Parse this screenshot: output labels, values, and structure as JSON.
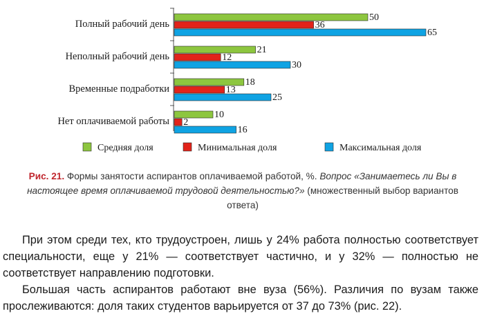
{
  "chart_data": {
    "type": "bar",
    "orientation": "horizontal",
    "categories": [
      "Полный рабочий день",
      "Неполный рабочий день",
      "Временные подработки",
      "Нет оплачиваемой работы"
    ],
    "series": [
      {
        "name": "Средняя доля",
        "color": "#8dc63f",
        "values": [
          50,
          21,
          18,
          10
        ]
      },
      {
        "name": "Минимальная доля",
        "color": "#e2231a",
        "values": [
          36,
          12,
          13,
          2
        ]
      },
      {
        "name": "Максимальная доля",
        "color": "#0fa3e3",
        "values": [
          65,
          30,
          25,
          16
        ]
      }
    ],
    "value_unit": "%",
    "xlim": [
      0,
      70
    ],
    "legend_position": "bottom",
    "grid": false
  },
  "caption": {
    "number": "Рис. 21.",
    "title": " Формы занятости аспирантов оплачиваемой работой, %. ",
    "question": "Вопрос «Занимаетесь ли Вы в настоящее время оплачиваемой трудовой деятельностью?»",
    "note": " (множественный выбор вариантов ответа)"
  },
  "paragraphs": [
    "При этом среди тех, кто трудоустроен, лишь у 24% работа полностью соответствует специальности, еще у 21% — соответствует частично, и у 32% — полностью не соответствует направлению подготовки.",
    "Большая часть аспирантов работают вне вуза (56%). Различия по вузам также прослеживаются: доля таких студентов варьируется от 37 до 73% (рис. 22)."
  ]
}
